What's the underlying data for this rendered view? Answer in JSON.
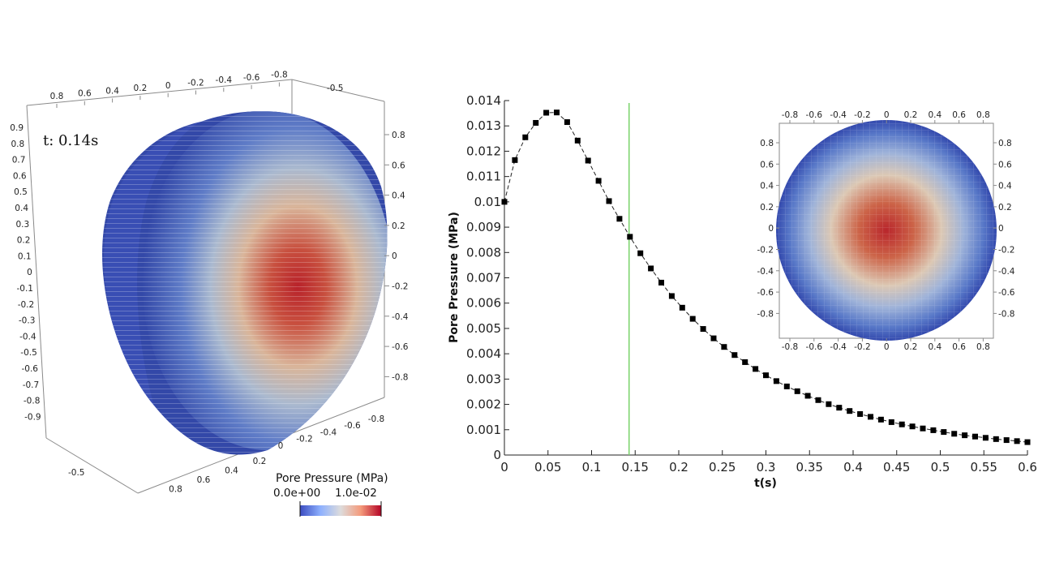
{
  "time_label": "t: 0.14s",
  "colors": {
    "low": "#3b4cc0",
    "mid": "#dddcd8",
    "high": "#b40426",
    "cursor_line": "#79d26a",
    "marker": "#000000"
  },
  "left_3d_view": {
    "top_axis_ticks": [
      "0.8",
      "0.6",
      "0.4",
      "0.2",
      "0",
      "-0.2",
      "-0.4",
      "-0.6",
      "-0.8"
    ],
    "top_right_tick": "-0.5",
    "left_axis_ticks": [
      "0.9",
      "0.8",
      "0.7",
      "0.6",
      "0.5",
      "0.4",
      "0.3",
      "0.2",
      "0.1",
      "0",
      "-0.1",
      "-0.2",
      "-0.3",
      "-0.4",
      "-0.5",
      "-0.6",
      "-0.7",
      "-0.8",
      "-0.9"
    ],
    "right_axis_ticks": [
      "0.8",
      "0.6",
      "0.4",
      "0.2",
      "0",
      "-0.2",
      "-0.4",
      "-0.6",
      "-0.8"
    ],
    "bottom_diag_ticks": [
      "-0.8",
      "-0.6",
      "-0.4",
      "-0.2",
      "0"
    ],
    "bottom_front_ticks": [
      "0.2",
      "0.4",
      "0.6",
      "0.8"
    ],
    "bottom_left_tick": "-0.5"
  },
  "colorbar": {
    "title": "Pore Pressure (MPa)",
    "min_label": "0.0e+00",
    "max_label": "1.0e-02"
  },
  "inset_view": {
    "x_ticks": [
      "-0.8",
      "-0.6",
      "-0.4",
      "-0.2",
      "0",
      "0.2",
      "0.4",
      "0.6",
      "0.8"
    ],
    "y_ticks": [
      "0.8",
      "0.6",
      "0.4",
      "0.2",
      "0",
      "-0.2",
      "-0.4",
      "-0.6",
      "-0.8"
    ]
  },
  "chart_data": {
    "type": "scatter",
    "title": "",
    "xlabel": "t(s)",
    "ylabel": "Pore Pressure (MPa)",
    "xlim": [
      0,
      0.6
    ],
    "ylim": [
      0,
      0.014
    ],
    "x_ticks": [
      "0",
      "0.05",
      "0.1",
      "0.15",
      "0.2",
      "0.25",
      "0.3",
      "0.35",
      "0.4",
      "0.45",
      "0.5",
      "0.55",
      "0.6"
    ],
    "y_ticks": [
      "0",
      "0.001",
      "0.002",
      "0.003",
      "0.004",
      "0.005",
      "0.006",
      "0.007",
      "0.008",
      "0.009",
      "0.01",
      "0.011",
      "0.012",
      "0.013",
      "0.014"
    ],
    "cursor_t": 0.143,
    "series": [
      {
        "name": "Pore Pressure",
        "style": "dashed-line-square-markers",
        "x": [
          0.0,
          0.012,
          0.024,
          0.036,
          0.048,
          0.06,
          0.072,
          0.084,
          0.096,
          0.108,
          0.12,
          0.132,
          0.144,
          0.156,
          0.168,
          0.18,
          0.192,
          0.204,
          0.216,
          0.228,
          0.24,
          0.252,
          0.264,
          0.276,
          0.288,
          0.3,
          0.312,
          0.324,
          0.336,
          0.348,
          0.36,
          0.372,
          0.384,
          0.396,
          0.408,
          0.42,
          0.432,
          0.444,
          0.456,
          0.468,
          0.48,
          0.492,
          0.504,
          0.516,
          0.528,
          0.54,
          0.552,
          0.564,
          0.576,
          0.588,
          0.6
        ],
        "y": [
          0.01,
          0.01165,
          0.01255,
          0.01312,
          0.01352,
          0.01353,
          0.01315,
          0.01242,
          0.01163,
          0.01083,
          0.01003,
          0.00933,
          0.00862,
          0.00797,
          0.00737,
          0.00681,
          0.00628,
          0.00582,
          0.00538,
          0.00498,
          0.00461,
          0.00427,
          0.00395,
          0.00367,
          0.0034,
          0.00315,
          0.00292,
          0.00271,
          0.00252,
          0.00234,
          0.00217,
          0.00201,
          0.00187,
          0.00174,
          0.00162,
          0.00151,
          0.0014,
          0.0013,
          0.00121,
          0.00113,
          0.00105,
          0.00098,
          0.00091,
          0.00084,
          0.00078,
          0.00073,
          0.00068,
          0.00063,
          0.00059,
          0.00055,
          0.00051
        ]
      }
    ]
  }
}
